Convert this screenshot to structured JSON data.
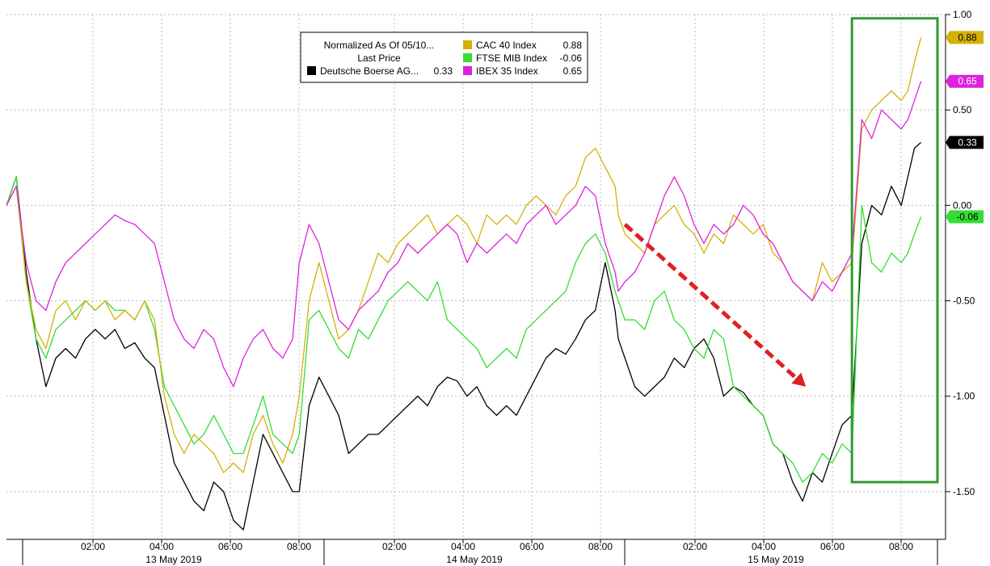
{
  "chart_data": {
    "type": "line",
    "title": "",
    "legend": {
      "header_line1": "Normalized As Of 05/10...",
      "header_line2": "Last Price",
      "placement": "top-center",
      "items": [
        {
          "label": "Deutsche Boerse AG...",
          "value": "0.33",
          "color": "#000000"
        },
        {
          "label": "CAC 40 Index",
          "value": "0.88",
          "color": "#d4b106"
        },
        {
          "label": "FTSE MIB Index",
          "value": "-0.06",
          "color": "#33dd33"
        },
        {
          "label": "IBEX 35 Index",
          "value": "0.65",
          "color": "#dd22dd"
        }
      ]
    },
    "y_axis": {
      "position": "right",
      "ylim": [
        -1.75,
        1.0
      ],
      "ticks": [
        1.0,
        0.5,
        0.0,
        -0.5,
        -1.0,
        -1.5
      ],
      "tick_labels": [
        "1.00",
        "0.50",
        "0.00",
        "-0.50",
        "-1.00",
        "-1.50"
      ]
    },
    "x_axis": {
      "day_sessions": [
        {
          "label": "13 May 2019",
          "start_hour": 0.6,
          "end_hour": 9.5,
          "ticks": [
            "02:00",
            "04:00",
            "06:00",
            "08:00"
          ],
          "tick_hours": [
            2,
            4,
            6,
            8
          ]
        },
        {
          "label": "14 May 2019",
          "start_hour": 0.6,
          "end_hour": 9.5,
          "ticks": [
            "02:00",
            "04:00",
            "06:00",
            "08:00"
          ],
          "tick_hours": [
            2,
            4,
            6,
            8
          ]
        },
        {
          "label": "15 May 2019",
          "start_hour": 0.6,
          "end_hour": 9.4,
          "ticks": [
            "02:00",
            "04:00",
            "06:00",
            "08:00"
          ],
          "tick_hours": [
            2,
            4,
            6,
            8
          ]
        }
      ]
    },
    "grid": true,
    "series": [
      {
        "name": "Deutsche Boerse AG...",
        "color": "#000000",
        "x": [
          0,
          0.3,
          0.6,
          0.9,
          1.2,
          1.5,
          1.8,
          2.1,
          2.4,
          2.7,
          3.0,
          3.3,
          3.6,
          3.9,
          4.2,
          4.5,
          4.8,
          5.1,
          5.4,
          5.7,
          6.0,
          6.3,
          6.6,
          6.9,
          7.2,
          7.5,
          7.8,
          8.1,
          8.4,
          8.7,
          8.9,
          9.2,
          9.5,
          9.8,
          10.1,
          10.4,
          10.7,
          11.0,
          11.3,
          11.6,
          11.9,
          12.2,
          12.5,
          12.8,
          13.1,
          13.4,
          13.7,
          14.0,
          14.3,
          14.6,
          14.9,
          15.2,
          15.5,
          15.8,
          16.1,
          16.4,
          16.7,
          17.0,
          17.3,
          17.6,
          17.9,
          18.2,
          18.5,
          18.6,
          18.8,
          19.1,
          19.4,
          19.7,
          20.0,
          20.3,
          20.6,
          20.9,
          21.2,
          21.5,
          21.8,
          22.1,
          22.4,
          22.7,
          23.0,
          23.3,
          23.6,
          23.9,
          24.2,
          24.5,
          24.8,
          25.1,
          25.4,
          25.7,
          26.0,
          26.3,
          26.6,
          26.9,
          27.2,
          27.4,
          27.6,
          27.8
        ],
        "values": [
          0.0,
          0.15,
          -0.35,
          -0.7,
          -0.95,
          -0.8,
          -0.75,
          -0.8,
          -0.7,
          -0.65,
          -0.7,
          -0.65,
          -0.75,
          -0.72,
          -0.8,
          -0.85,
          -1.1,
          -1.35,
          -1.45,
          -1.55,
          -1.6,
          -1.45,
          -1.5,
          -1.65,
          -1.7,
          -1.45,
          -1.2,
          -1.3,
          -1.4,
          -1.5,
          -1.5,
          -1.05,
          -0.9,
          -1.0,
          -1.1,
          -1.3,
          -1.25,
          -1.2,
          -1.2,
          -1.15,
          -1.1,
          -1.05,
          -1.0,
          -1.05,
          -0.95,
          -0.9,
          -0.92,
          -1.0,
          -0.95,
          -1.05,
          -1.1,
          -1.05,
          -1.1,
          -1.0,
          -0.9,
          -0.8,
          -0.75,
          -0.78,
          -0.7,
          -0.6,
          -0.55,
          -0.3,
          -0.55,
          -0.7,
          -0.8,
          -0.95,
          -1.0,
          -0.95,
          -0.9,
          -0.8,
          -0.85,
          -0.75,
          -0.7,
          -0.8,
          -1.0,
          -0.95,
          -0.98,
          -1.05,
          -1.1,
          -1.25,
          -1.3,
          -1.45,
          -1.55,
          -1.4,
          -1.45,
          -1.3,
          -1.15,
          -1.1,
          -0.2,
          0.0,
          -0.05,
          0.1,
          0.0,
          0.15,
          0.3,
          0.33
        ]
      },
      {
        "name": "CAC 40 Index",
        "color": "#d4b106",
        "x": [
          0,
          0.3,
          0.6,
          0.9,
          1.2,
          1.5,
          1.8,
          2.1,
          2.4,
          2.7,
          3.0,
          3.3,
          3.6,
          3.9,
          4.2,
          4.5,
          4.8,
          5.1,
          5.4,
          5.7,
          6.0,
          6.3,
          6.6,
          6.9,
          7.2,
          7.5,
          7.8,
          8.1,
          8.4,
          8.7,
          8.9,
          9.2,
          9.5,
          9.8,
          10.1,
          10.4,
          10.7,
          11.0,
          11.3,
          11.6,
          11.9,
          12.2,
          12.5,
          12.8,
          13.1,
          13.4,
          13.7,
          14.0,
          14.3,
          14.6,
          14.9,
          15.2,
          15.5,
          15.8,
          16.1,
          16.4,
          16.7,
          17.0,
          17.3,
          17.6,
          17.9,
          18.2,
          18.5,
          18.6,
          18.8,
          19.1,
          19.4,
          19.7,
          20.0,
          20.3,
          20.6,
          20.9,
          21.2,
          21.5,
          21.8,
          22.1,
          22.4,
          22.7,
          23.0,
          23.3,
          23.6,
          23.9,
          24.2,
          24.5,
          24.8,
          25.1,
          25.4,
          25.7,
          26.0,
          26.3,
          26.6,
          26.9,
          27.2,
          27.4,
          27.6,
          27.8
        ],
        "values": [
          0.0,
          0.1,
          -0.4,
          -0.65,
          -0.75,
          -0.55,
          -0.5,
          -0.6,
          -0.5,
          -0.55,
          -0.5,
          -0.6,
          -0.55,
          -0.6,
          -0.5,
          -0.6,
          -1.0,
          -1.2,
          -1.3,
          -1.2,
          -1.25,
          -1.3,
          -1.4,
          -1.35,
          -1.4,
          -1.2,
          -1.1,
          -1.25,
          -1.35,
          -1.2,
          -1.0,
          -0.5,
          -0.3,
          -0.5,
          -0.7,
          -0.65,
          -0.55,
          -0.4,
          -0.25,
          -0.3,
          -0.2,
          -0.15,
          -0.1,
          -0.05,
          -0.15,
          -0.1,
          -0.05,
          -0.1,
          -0.2,
          -0.05,
          -0.1,
          -0.05,
          -0.1,
          0.0,
          0.05,
          0.0,
          -0.05,
          0.05,
          0.1,
          0.25,
          0.3,
          0.2,
          0.1,
          -0.05,
          -0.15,
          -0.2,
          -0.25,
          -0.1,
          -0.05,
          0.0,
          -0.1,
          -0.15,
          -0.25,
          -0.15,
          -0.2,
          -0.05,
          -0.1,
          -0.15,
          -0.1,
          -0.25,
          -0.3,
          -0.4,
          -0.45,
          -0.5,
          -0.3,
          -0.4,
          -0.35,
          -0.3,
          0.4,
          0.5,
          0.55,
          0.6,
          0.55,
          0.6,
          0.75,
          0.88
        ]
      },
      {
        "name": "FTSE MIB Index",
        "color": "#33dd33",
        "x": [
          0,
          0.3,
          0.6,
          0.9,
          1.2,
          1.5,
          1.8,
          2.1,
          2.4,
          2.7,
          3.0,
          3.3,
          3.6,
          3.9,
          4.2,
          4.5,
          4.8,
          5.1,
          5.4,
          5.7,
          6.0,
          6.3,
          6.6,
          6.9,
          7.2,
          7.5,
          7.8,
          8.1,
          8.4,
          8.7,
          8.9,
          9.2,
          9.5,
          9.8,
          10.1,
          10.4,
          10.7,
          11.0,
          11.3,
          11.6,
          11.9,
          12.2,
          12.5,
          12.8,
          13.1,
          13.4,
          13.7,
          14.0,
          14.3,
          14.6,
          14.9,
          15.2,
          15.5,
          15.8,
          16.1,
          16.4,
          16.7,
          17.0,
          17.3,
          17.6,
          17.9,
          18.2,
          18.5,
          18.6,
          18.8,
          19.1,
          19.4,
          19.7,
          20.0,
          20.3,
          20.6,
          20.9,
          21.2,
          21.5,
          21.8,
          22.1,
          22.4,
          22.7,
          23.0,
          23.3,
          23.6,
          23.9,
          24.2,
          24.5,
          24.8,
          25.1,
          25.4,
          25.7,
          26.0,
          26.3,
          26.6,
          26.9,
          27.2,
          27.4,
          27.6,
          27.8
        ],
        "values": [
          0.0,
          0.15,
          -0.4,
          -0.7,
          -0.8,
          -0.65,
          -0.6,
          -0.55,
          -0.5,
          -0.55,
          -0.5,
          -0.55,
          -0.55,
          -0.6,
          -0.5,
          -0.65,
          -0.95,
          -1.05,
          -1.15,
          -1.25,
          -1.2,
          -1.1,
          -1.2,
          -1.3,
          -1.3,
          -1.15,
          -1.0,
          -1.2,
          -1.25,
          -1.3,
          -1.2,
          -0.6,
          -0.55,
          -0.65,
          -0.75,
          -0.8,
          -0.65,
          -0.7,
          -0.6,
          -0.5,
          -0.45,
          -0.4,
          -0.45,
          -0.5,
          -0.4,
          -0.6,
          -0.65,
          -0.7,
          -0.75,
          -0.85,
          -0.8,
          -0.75,
          -0.8,
          -0.65,
          -0.6,
          -0.55,
          -0.5,
          -0.45,
          -0.3,
          -0.2,
          -0.15,
          -0.25,
          -0.45,
          -0.5,
          -0.6,
          -0.6,
          -0.65,
          -0.5,
          -0.45,
          -0.6,
          -0.65,
          -0.75,
          -0.8,
          -0.65,
          -0.7,
          -0.95,
          -1.0,
          -1.05,
          -1.1,
          -1.25,
          -1.3,
          -1.35,
          -1.45,
          -1.4,
          -1.3,
          -1.35,
          -1.25,
          -1.3,
          0.0,
          -0.3,
          -0.35,
          -0.25,
          -0.3,
          -0.25,
          -0.15,
          -0.06
        ]
      },
      {
        "name": "IBEX 35 Index",
        "color": "#dd22dd",
        "x": [
          0,
          0.3,
          0.6,
          0.9,
          1.2,
          1.5,
          1.8,
          2.1,
          2.4,
          2.7,
          3.0,
          3.3,
          3.6,
          3.9,
          4.2,
          4.5,
          4.8,
          5.1,
          5.4,
          5.7,
          6.0,
          6.3,
          6.6,
          6.9,
          7.2,
          7.5,
          7.8,
          8.1,
          8.4,
          8.7,
          8.9,
          9.2,
          9.5,
          9.8,
          10.1,
          10.4,
          10.7,
          11.0,
          11.3,
          11.6,
          11.9,
          12.2,
          12.5,
          12.8,
          13.1,
          13.4,
          13.7,
          14.0,
          14.3,
          14.6,
          14.9,
          15.2,
          15.5,
          15.8,
          16.1,
          16.4,
          16.7,
          17.0,
          17.3,
          17.6,
          17.9,
          18.2,
          18.5,
          18.6,
          18.8,
          19.1,
          19.4,
          19.7,
          20.0,
          20.3,
          20.6,
          20.9,
          21.2,
          21.5,
          21.8,
          22.1,
          22.4,
          22.7,
          23.0,
          23.3,
          23.6,
          23.9,
          24.2,
          24.5,
          24.8,
          25.1,
          25.4,
          25.7,
          26.0,
          26.3,
          26.6,
          26.9,
          27.2,
          27.4,
          27.6,
          27.8
        ],
        "values": [
          0.0,
          0.1,
          -0.3,
          -0.5,
          -0.55,
          -0.4,
          -0.3,
          -0.25,
          -0.2,
          -0.15,
          -0.1,
          -0.05,
          -0.08,
          -0.1,
          -0.15,
          -0.2,
          -0.4,
          -0.6,
          -0.7,
          -0.75,
          -0.65,
          -0.7,
          -0.85,
          -0.95,
          -0.8,
          -0.7,
          -0.65,
          -0.75,
          -0.8,
          -0.7,
          -0.3,
          -0.1,
          -0.2,
          -0.4,
          -0.6,
          -0.65,
          -0.55,
          -0.5,
          -0.45,
          -0.35,
          -0.3,
          -0.2,
          -0.25,
          -0.2,
          -0.15,
          -0.1,
          -0.15,
          -0.3,
          -0.2,
          -0.25,
          -0.2,
          -0.15,
          -0.2,
          -0.1,
          -0.05,
          0.0,
          -0.1,
          -0.05,
          0.0,
          0.1,
          0.05,
          -0.2,
          -0.35,
          -0.45,
          -0.4,
          -0.35,
          -0.25,
          -0.1,
          0.05,
          0.15,
          0.05,
          -0.1,
          -0.2,
          -0.1,
          -0.15,
          -0.1,
          0.0,
          -0.05,
          -0.15,
          -0.2,
          -0.3,
          -0.4,
          -0.45,
          -0.5,
          -0.4,
          -0.45,
          -0.35,
          -0.25,
          0.45,
          0.35,
          0.5,
          0.45,
          0.4,
          0.45,
          0.55,
          0.65
        ]
      }
    ],
    "annotations": {
      "arrow": {
        "color": "#dd2222",
        "from": {
          "x": 18.8,
          "y": -0.1
        },
        "to": {
          "x": 24.3,
          "y": -0.95
        }
      },
      "highlight_box": {
        "color": "#339933",
        "x_from": 25.7,
        "x_to": 28.3,
        "y_from": 0.98,
        "y_to": -1.45
      }
    },
    "last_value_tags": [
      {
        "label": "0.88",
        "value": 0.88,
        "color": "#d4b106",
        "text_color": "#000000"
      },
      {
        "label": "0.65",
        "value": 0.65,
        "color": "#dd22dd",
        "text_color": "#ffffff"
      },
      {
        "label": "0.33",
        "value": 0.33,
        "color": "#000000",
        "text_color": "#ffffff"
      },
      {
        "label": "-0.06",
        "value": -0.06,
        "color": "#33dd33",
        "text_color": "#000000"
      }
    ]
  }
}
